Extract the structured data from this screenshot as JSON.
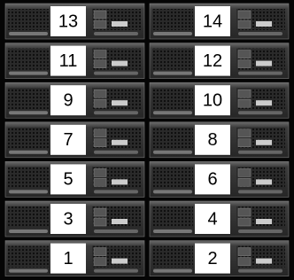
{
  "rows": [
    [
      13,
      14
    ],
    [
      11,
      12
    ],
    [
      9,
      10
    ],
    [
      7,
      8
    ],
    [
      5,
      6
    ],
    [
      3,
      4
    ],
    [
      1,
      2
    ]
  ]
}
